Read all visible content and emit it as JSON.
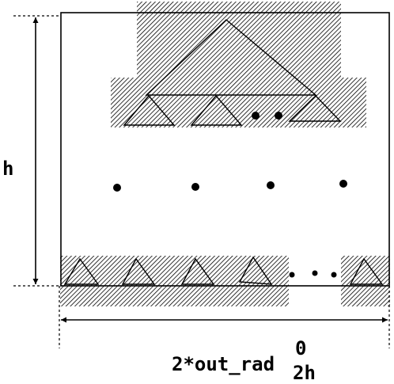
{
  "labels": {
    "height": "h",
    "width": "2*out_rad",
    "superscript": "0",
    "subscript": "2h"
  },
  "colors": {
    "stroke": "#000000",
    "hatch": "#000000",
    "background": "#ffffff"
  }
}
